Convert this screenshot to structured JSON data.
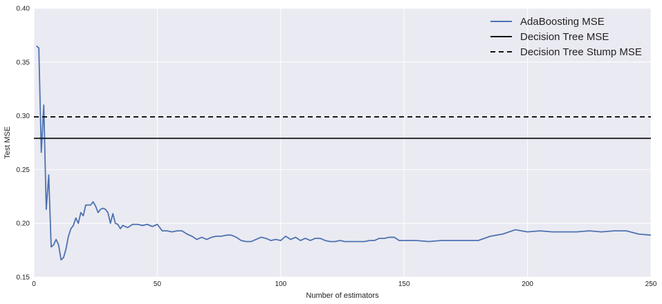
{
  "chart_data": {
    "type": "line",
    "title": "",
    "xlabel": "Number of estimators",
    "ylabel": "Test MSE",
    "xlim": [
      0,
      250
    ],
    "ylim": [
      0.15,
      0.4
    ],
    "xticks": [
      "0",
      "50",
      "100",
      "150",
      "200",
      "250"
    ],
    "yticks": [
      "0.15",
      "0.20",
      "0.25",
      "0.30",
      "0.35",
      "0.40"
    ],
    "grid": true,
    "legend_position": "top-right",
    "background_color": "#eaeaf2",
    "grid_color": "#ffffff",
    "series": [
      {
        "name": "AdaBoosting MSE",
        "style": "solid",
        "color": "#4c72b0",
        "x": [
          1,
          2,
          3,
          4,
          5,
          6,
          7,
          8,
          9,
          10,
          11,
          12,
          13,
          14,
          15,
          16,
          17,
          18,
          19,
          20,
          21,
          22,
          23,
          24,
          25,
          26,
          27,
          28,
          29,
          30,
          31,
          32,
          33,
          34,
          35,
          36,
          38,
          40,
          42,
          44,
          46,
          48,
          50,
          52,
          54,
          56,
          58,
          60,
          62,
          64,
          66,
          68,
          70,
          72,
          74,
          76,
          78,
          80,
          82,
          84,
          86,
          88,
          90,
          92,
          94,
          96,
          98,
          100,
          102,
          104,
          106,
          108,
          110,
          112,
          114,
          116,
          118,
          120,
          122,
          124,
          126,
          128,
          130,
          132,
          134,
          136,
          138,
          140,
          142,
          144,
          146,
          148,
          150,
          155,
          160,
          165,
          170,
          175,
          180,
          185,
          190,
          195,
          200,
          205,
          210,
          215,
          220,
          225,
          230,
          235,
          240,
          245,
          250
        ],
        "values": [
          0.365,
          0.363,
          0.266,
          0.31,
          0.213,
          0.245,
          0.178,
          0.18,
          0.185,
          0.18,
          0.166,
          0.168,
          0.176,
          0.188,
          0.195,
          0.198,
          0.205,
          0.2,
          0.21,
          0.207,
          0.217,
          0.217,
          0.217,
          0.22,
          0.216,
          0.21,
          0.213,
          0.214,
          0.213,
          0.21,
          0.2,
          0.209,
          0.2,
          0.199,
          0.195,
          0.198,
          0.196,
          0.199,
          0.199,
          0.198,
          0.199,
          0.197,
          0.199,
          0.193,
          0.193,
          0.192,
          0.193,
          0.193,
          0.19,
          0.188,
          0.185,
          0.187,
          0.185,
          0.187,
          0.188,
          0.188,
          0.189,
          0.189,
          0.187,
          0.184,
          0.183,
          0.183,
          0.185,
          0.187,
          0.186,
          0.184,
          0.185,
          0.184,
          0.188,
          0.185,
          0.187,
          0.184,
          0.186,
          0.184,
          0.186,
          0.186,
          0.184,
          0.183,
          0.183,
          0.184,
          0.183,
          0.183,
          0.183,
          0.183,
          0.183,
          0.184,
          0.184,
          0.186,
          0.186,
          0.187,
          0.187,
          0.184,
          0.184,
          0.184,
          0.183,
          0.184,
          0.184,
          0.184,
          0.184,
          0.188,
          0.19,
          0.194,
          0.192,
          0.193,
          0.192,
          0.192,
          0.192,
          0.193,
          0.192,
          0.193,
          0.193,
          0.19,
          0.189
        ]
      },
      {
        "name": "Decision Tree MSE",
        "style": "solid",
        "color": "#111111",
        "x": [
          0,
          250
        ],
        "values": [
          0.279,
          0.279
        ]
      },
      {
        "name": "Decision Tree Stump MSE",
        "style": "dashed",
        "color": "#111111",
        "x": [
          0,
          250
        ],
        "values": [
          0.299,
          0.299
        ]
      }
    ]
  }
}
